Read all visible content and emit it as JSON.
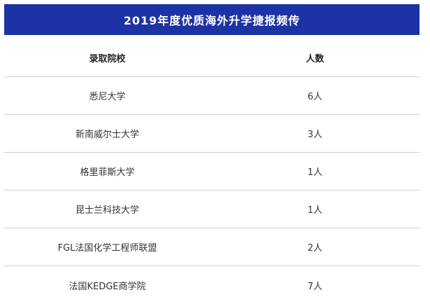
{
  "banner": {
    "title": "2019年度优质海外升学捷报频传"
  },
  "table": {
    "headers": {
      "school": "录取院校",
      "count": "人数"
    },
    "rows": [
      {
        "school": "悉尼大学",
        "count": "6人"
      },
      {
        "school": "新南威尔士大学",
        "count": "3人"
      },
      {
        "school": "格里菲斯大学",
        "count": "1人"
      },
      {
        "school": "昆士兰科技大学",
        "count": "1人"
      },
      {
        "school": "FGL法国化学工程师联盟",
        "count": "2人"
      },
      {
        "school": "法国KEDGE商学院",
        "count": "7人"
      }
    ]
  },
  "colors": {
    "banner_bg": "#1d32a5",
    "divider": "#cfcfcf"
  }
}
